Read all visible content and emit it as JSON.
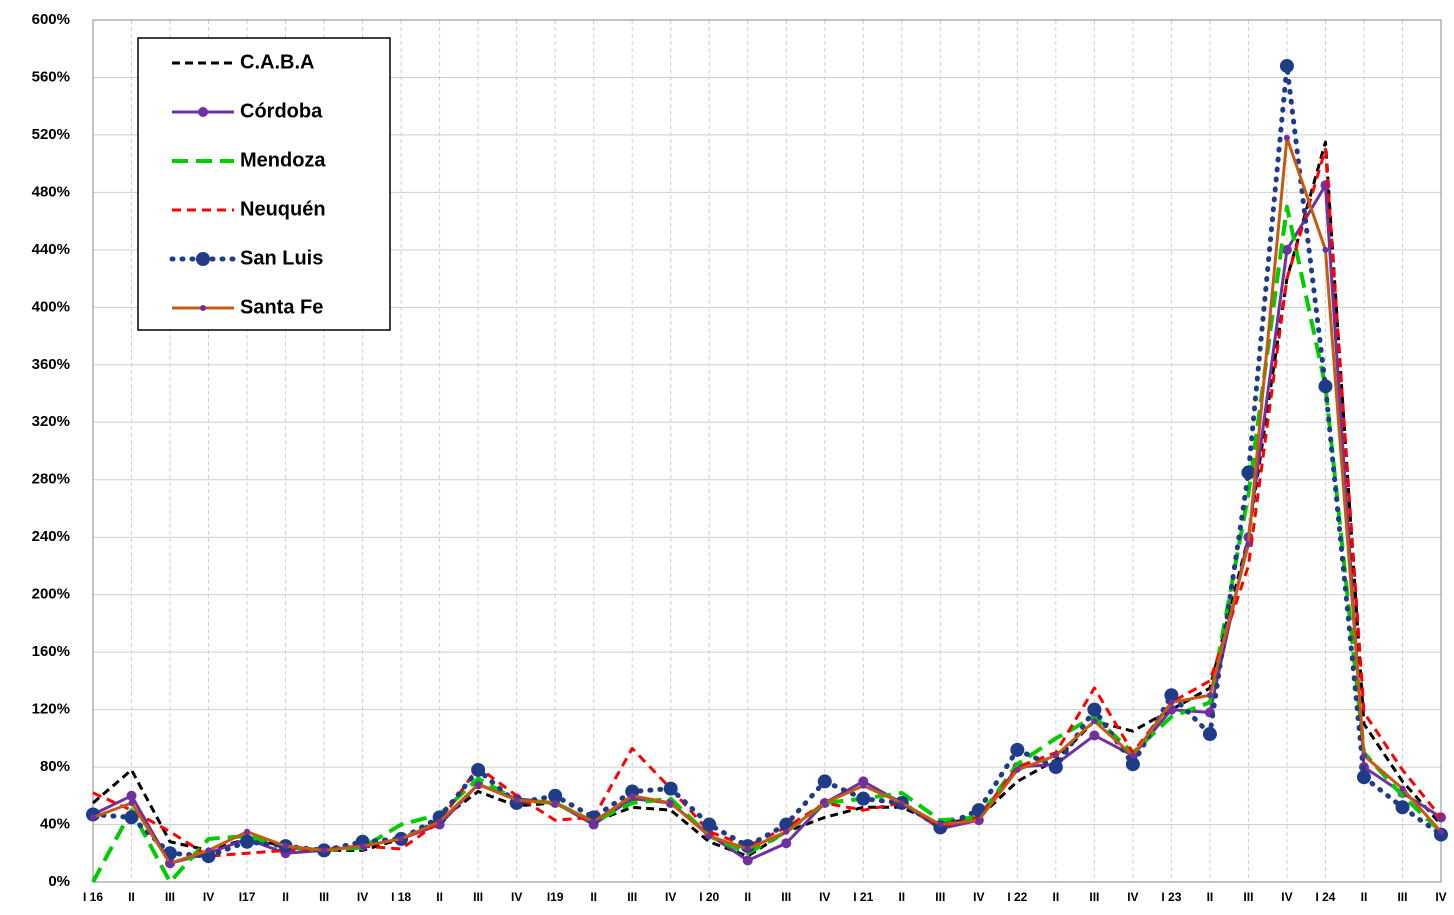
{
  "chart_data": {
    "type": "line",
    "categories": [
      "I 16",
      "II",
      "III",
      "IV",
      "I17",
      "II",
      "III",
      "IV",
      "I 18",
      "II",
      "III",
      "IV",
      "I19",
      "II",
      "III",
      "IV",
      "I 20",
      "II",
      "III",
      "IV",
      "I 21",
      "II",
      "III",
      "IV",
      "I 22",
      "II",
      "III",
      "IV",
      "I 23",
      "II",
      "III",
      "IV",
      "I 24",
      "II",
      "III",
      "IV"
    ],
    "series": [
      {
        "name": "C.A.B.A",
        "color": "#000000",
        "values": [
          55,
          78,
          28,
          22,
          30,
          25,
          22,
          22,
          30,
          43,
          63,
          53,
          55,
          42,
          52,
          50,
          28,
          18,
          35,
          45,
          52,
          52,
          40,
          45,
          70,
          85,
          112,
          105,
          120,
          135,
          240,
          420,
          515,
          110,
          70,
          40
        ]
      },
      {
        "name": "Córdoba",
        "color": "#7030a0",
        "values": [
          47,
          60,
          13,
          20,
          30,
          20,
          22,
          25,
          30,
          40,
          68,
          58,
          55,
          40,
          58,
          55,
          33,
          15,
          27,
          55,
          70,
          55,
          37,
          43,
          80,
          82,
          102,
          88,
          120,
          118,
          240,
          440,
          485,
          80,
          62,
          45
        ]
      },
      {
        "name": "Mendoza",
        "color": "#00cc00",
        "values": [
          0,
          50,
          0,
          30,
          32,
          24,
          22,
          24,
          40,
          47,
          72,
          57,
          55,
          42,
          55,
          58,
          32,
          20,
          35,
          55,
          58,
          62,
          43,
          45,
          82,
          100,
          115,
          90,
          115,
          125,
          270,
          470,
          345,
          90,
          60,
          35
        ]
      },
      {
        "name": "Neuquén",
        "color": "#ff0000",
        "values": [
          62,
          50,
          35,
          18,
          20,
          22,
          23,
          25,
          23,
          42,
          80,
          60,
          43,
          45,
          93,
          65,
          35,
          25,
          38,
          55,
          50,
          55,
          38,
          45,
          80,
          90,
          135,
          90,
          125,
          140,
          220,
          420,
          510,
          118,
          78,
          45
        ]
      },
      {
        "name": "San Luis",
        "color": "#1f3c88",
        "values": [
          47,
          45,
          20,
          18,
          28,
          25,
          22,
          28,
          30,
          45,
          78,
          55,
          60,
          45,
          63,
          65,
          40,
          25,
          40,
          70,
          58,
          55,
          38,
          50,
          92,
          80,
          120,
          82,
          130,
          103,
          285,
          568,
          345,
          73,
          52,
          33
        ]
      },
      {
        "name": "Santa Fe",
        "color": "#c55a11",
        "values": [
          45,
          55,
          13,
          22,
          35,
          25,
          22,
          25,
          30,
          42,
          68,
          57,
          55,
          42,
          60,
          55,
          32,
          23,
          35,
          55,
          67,
          55,
          40,
          43,
          78,
          88,
          112,
          88,
          125,
          130,
          235,
          518,
          440,
          88,
          65,
          35
        ]
      }
    ],
    "ylim": [
      0,
      600
    ],
    "yticks": [
      {
        "value": 0,
        "label": "0%"
      },
      {
        "value": 40,
        "label": "40%"
      },
      {
        "value": 80,
        "label": "80%"
      },
      {
        "value": 120,
        "label": "120%"
      },
      {
        "value": 160,
        "label": "160%"
      },
      {
        "value": 200,
        "label": "200%"
      },
      {
        "value": 240,
        "label": "240%"
      },
      {
        "value": 280,
        "label": "280%"
      },
      {
        "value": 320,
        "label": "320%"
      },
      {
        "value": 360,
        "label": "360%"
      },
      {
        "value": 400,
        "label": "400%"
      },
      {
        "value": 440,
        "label": "440%"
      },
      {
        "value": 480,
        "label": "480%"
      },
      {
        "value": 520,
        "label": "520%"
      },
      {
        "value": 560,
        "label": "560%"
      },
      {
        "value": 600,
        "label": "600%"
      }
    ],
    "grid": true,
    "legend": "top-left"
  }
}
